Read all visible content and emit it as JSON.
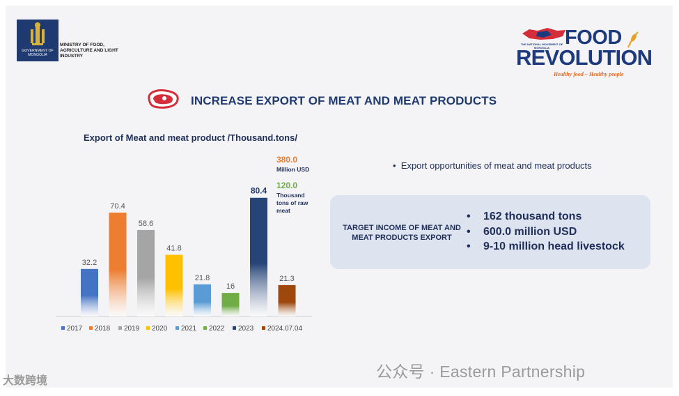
{
  "header": {
    "emblem_label": "GOVERNMENT OF MONGOLIA",
    "ministry_name": "MINISTRY OF FOOD, AGRICULTURE AND LIGHT INDUSTRY",
    "logo_tagline_small": "THE NATIONAL MOVEMENT OF MONGOLIA",
    "logo_line1": "FOOD",
    "logo_line2": "REVOLUTION",
    "logo_slogan": "Healthy food – Healthy people"
  },
  "slide_title": "INCREASE EXPORT OF MEAT AND MEAT PRODUCTS",
  "chart_data": {
    "type": "bar",
    "title": "Export of Meat and meat product /Thousand.tons/",
    "categories": [
      "2017",
      "2018",
      "2019",
      "2020",
      "2021",
      "2022",
      "2023",
      "2024.07.04"
    ],
    "values": [
      32.2,
      70.4,
      58.6,
      41.8,
      21.8,
      16,
      80.4,
      21.3
    ],
    "data_labels": [
      "32.2",
      "70.4",
      "58.6",
      "41.8",
      "21.8",
      "16",
      "80.4",
      "21.3"
    ],
    "colors": [
      "#4472c4",
      "#ed7d31",
      "#a5a5a5",
      "#ffc000",
      "#5b9bd5",
      "#70ad47",
      "#264478",
      "#9e480e"
    ],
    "ylim": [
      0,
      85
    ],
    "legend_position": "bottom",
    "grid": false,
    "annotations": [
      {
        "value": "380.0",
        "text": "Million USD",
        "color": "#ed7d31"
      },
      {
        "value": "120.0",
        "text": "Thousand tons of raw meat",
        "color": "#70ad47"
      }
    ]
  },
  "right_panel": {
    "bullet": "Export opportunities of meat and meat products",
    "target_label": "TARGET INCOME OF MEAT AND MEAT PRODUCTS EXPORT",
    "targets": [
      "162 thousand tons",
      "600.0 million USD",
      "9-10 million head livestock"
    ]
  },
  "watermarks": {
    "right": "公众号 · Eastern Partnership",
    "left": "大数跨境"
  }
}
